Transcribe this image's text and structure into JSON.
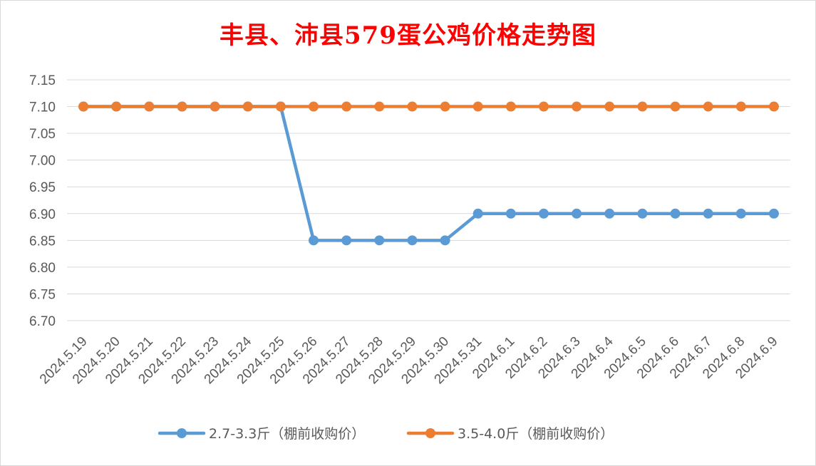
{
  "chart_data": {
    "type": "line",
    "title": "丰县、沛县579蛋公鸡价格走势图",
    "categories": [
      "2024.5.19",
      "2024.5.20",
      "2024.5.21",
      "2024.5.22",
      "2024.5.23",
      "2024.5.24",
      "2024.5.25",
      "2024.5.26",
      "2024.5.27",
      "2024.5.28",
      "2024.5.29",
      "2024.5.30",
      "2024.5.31",
      "2024.6.1",
      "2024.6.2",
      "2024.6.3",
      "2024.6.4",
      "2024.6.5",
      "2024.6.6",
      "2024.6.7",
      "2024.6.8",
      "2024.6.9"
    ],
    "series": [
      {
        "name": "2.7-3.3斤（棚前收购价）",
        "color": "#5b9bd5",
        "values": [
          7.1,
          7.1,
          7.1,
          7.1,
          7.1,
          7.1,
          7.1,
          6.85,
          6.85,
          6.85,
          6.85,
          6.85,
          6.9,
          6.9,
          6.9,
          6.9,
          6.9,
          6.9,
          6.9,
          6.9,
          6.9,
          6.9
        ]
      },
      {
        "name": "3.5-4.0斤（棚前收购价）",
        "color": "#ed7d31",
        "values": [
          7.1,
          7.1,
          7.1,
          7.1,
          7.1,
          7.1,
          7.1,
          7.1,
          7.1,
          7.1,
          7.1,
          7.1,
          7.1,
          7.1,
          7.1,
          7.1,
          7.1,
          7.1,
          7.1,
          7.1,
          7.1,
          7.1
        ]
      }
    ],
    "ylim": [
      6.7,
      7.15
    ],
    "yticks": [
      "6.70",
      "6.75",
      "6.80",
      "6.85",
      "6.90",
      "6.95",
      "7.00",
      "7.05",
      "7.10",
      "7.15"
    ],
    "xlabel": "",
    "ylabel": "",
    "grid": true,
    "legend": "bottom"
  }
}
